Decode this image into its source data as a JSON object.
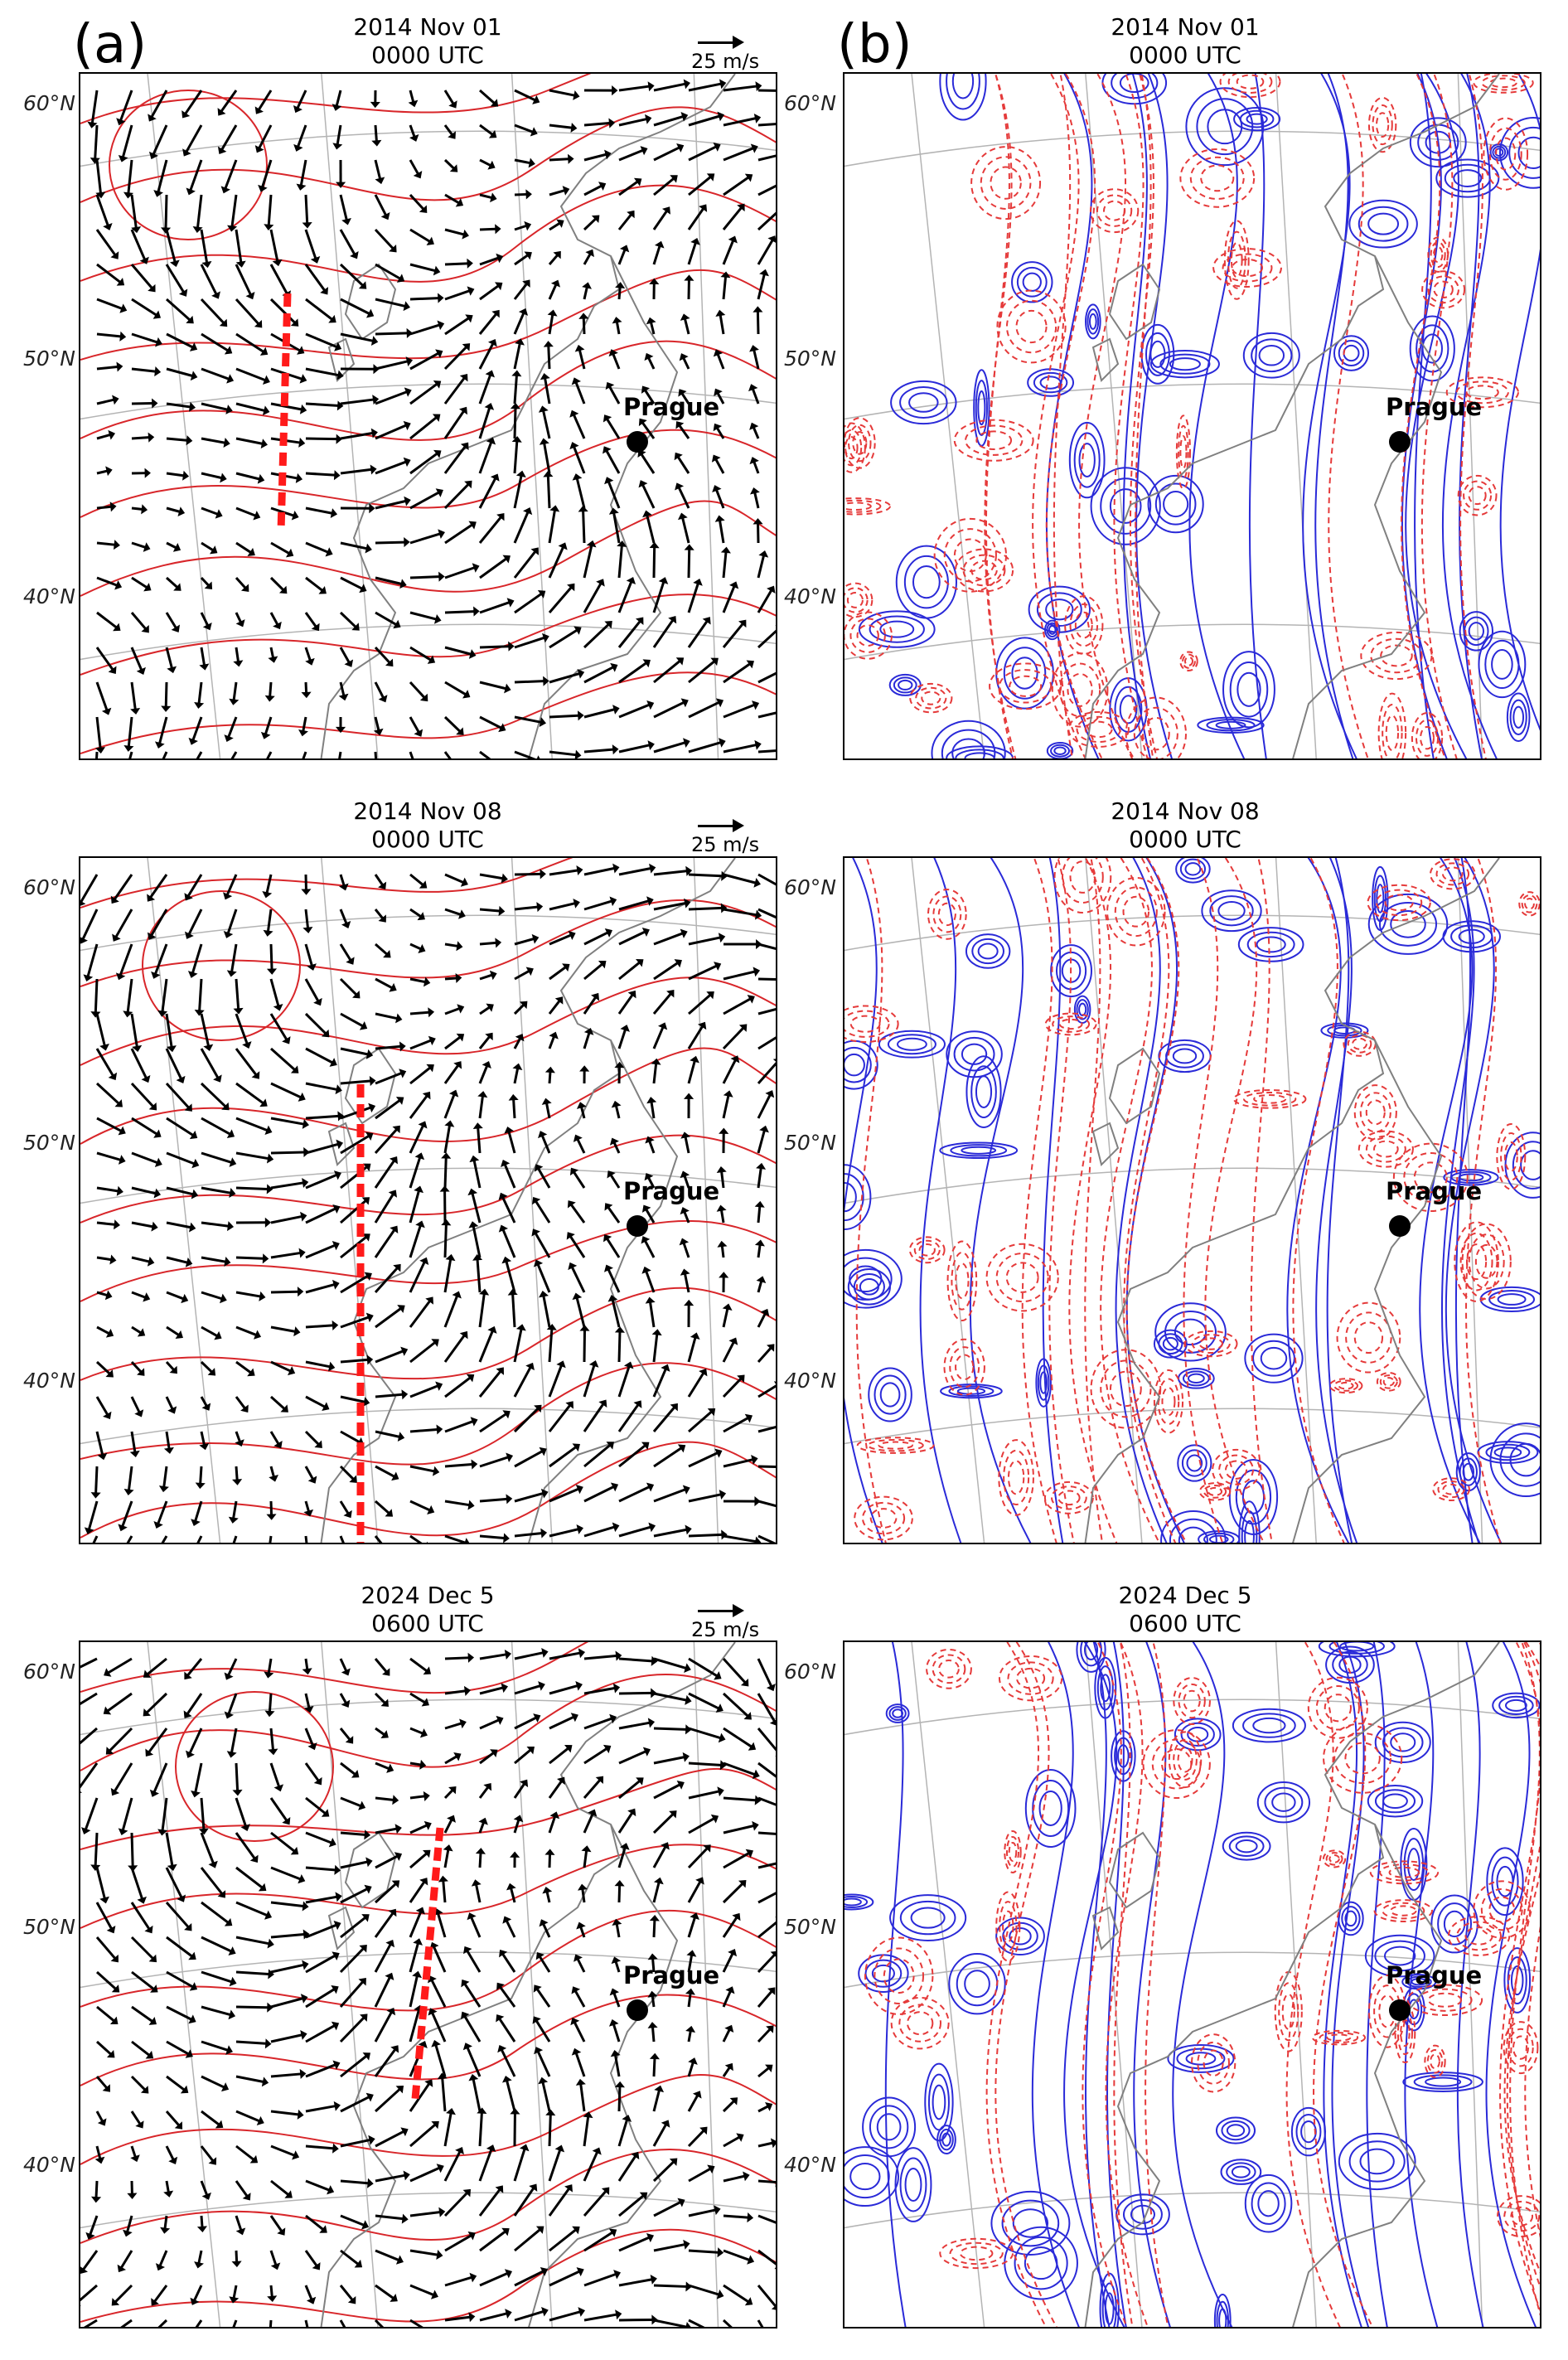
{
  "panel_letters": {
    "a": "(a)",
    "b": "(b)"
  },
  "rows": [
    {
      "date": "2014 Nov 01",
      "time": "0000 UTC"
    },
    {
      "date": "2014 Nov 08",
      "time": "0000 UTC"
    },
    {
      "date": "2024 Dec 5",
      "time": "0600 UTC"
    }
  ],
  "reference_vector_label": "25 m/s",
  "city_label": "Prague",
  "latitude_labels": [
    "60°N",
    "50°N",
    "40°N"
  ],
  "colors": {
    "geopotential_contour": "#d8262a",
    "positive_contour": "#2a2ad8",
    "negative_contour": "#e53a3a",
    "cross_section_line": "#ff1a1a",
    "wind_vector": "#000000",
    "coastline": "#808080",
    "graticule": "#b4b4b4"
  }
}
